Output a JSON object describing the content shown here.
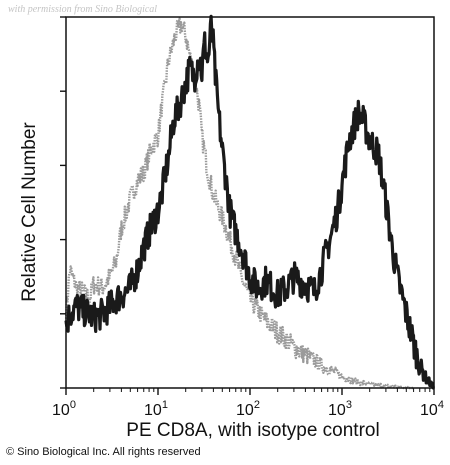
{
  "watermark": "with permission from Sino Biological",
  "copyright": "© Sino Biological Inc. All rights reserved",
  "chart_data": {
    "type": "area",
    "title": "",
    "xlabel": "PE CD8A, with isotype control",
    "ylabel": "Relative Cell Number",
    "x_scale": "log",
    "xlim": [
      1,
      10000
    ],
    "ylim": [
      0,
      100
    ],
    "grid": false,
    "legend": "none",
    "x_ticks": [
      {
        "value": 1,
        "base": "10",
        "exp": "0"
      },
      {
        "value": 10,
        "base": "10",
        "exp": "1"
      },
      {
        "value": 100,
        "base": "10",
        "exp": "2"
      },
      {
        "value": 1000,
        "base": "10",
        "exp": "3"
      },
      {
        "value": 10000,
        "base": "10",
        "exp": "4"
      }
    ],
    "series": [
      {
        "role": "isotype-control",
        "color": "#9a9a9a",
        "x": [
          1.0,
          1.1,
          1.3,
          1.5,
          1.8,
          2.0,
          2.5,
          3.0,
          3.5,
          4.0,
          5.0,
          6.0,
          7.0,
          8.0,
          9.0,
          10,
          11,
          12,
          13,
          14,
          15,
          16,
          18,
          20,
          22,
          25,
          28,
          30,
          35,
          40,
          50,
          60,
          70,
          80,
          100,
          120,
          150,
          200,
          250,
          300,
          400,
          500,
          600,
          800,
          1000,
          1200,
          1500,
          2000,
          3000,
          4000,
          5000,
          6000
        ],
        "y": [
          20,
          32,
          27,
          26,
          24,
          28,
          27,
          30,
          34,
          43,
          51,
          56,
          58,
          63,
          66,
          68,
          76,
          82,
          88,
          91,
          94,
          96,
          98,
          95,
          90,
          84,
          76,
          68,
          58,
          52,
          46,
          40,
          35,
          30,
          24,
          21,
          18,
          15,
          13,
          11,
          9,
          7.5,
          6,
          4.5,
          3.2,
          2.4,
          1.6,
          1.0,
          0.6,
          0.3,
          0.15,
          0
        ]
      },
      {
        "role": "PE CD8A",
        "color": "#1a1a1a",
        "x": [
          1.0,
          1.1,
          1.3,
          1.5,
          1.8,
          2.0,
          2.5,
          3.0,
          3.5,
          4.0,
          5.0,
          6.0,
          7.0,
          8.0,
          9.0,
          10,
          11,
          12,
          13,
          14,
          15,
          16,
          18,
          20,
          22,
          25,
          28,
          30,
          32,
          35,
          38,
          40,
          42,
          45,
          50,
          55,
          60,
          70,
          80,
          100,
          120,
          150,
          200,
          250,
          300,
          400,
          500,
          600,
          700,
          800,
          900,
          1000,
          1200,
          1500,
          1700,
          2000,
          2500,
          3000,
          3500,
          4000,
          5000,
          6000,
          7000,
          8000,
          10000
        ],
        "y": [
          17,
          20,
          22,
          21,
          20,
          19,
          20,
          22,
          24,
          25,
          27,
          32,
          38,
          42,
          45,
          48,
          52,
          58,
          62,
          68,
          73,
          74,
          78,
          82,
          86,
          84,
          90,
          85,
          93,
          88,
          98,
          92,
          84,
          75,
          64,
          56,
          48,
          42,
          38,
          30,
          27,
          29,
          25,
          27,
          30,
          28,
          26,
          32,
          38,
          43,
          48,
          55,
          67,
          74,
          72,
          67,
          63,
          50,
          38,
          30,
          20,
          12,
          6,
          3,
          0
        ]
      }
    ]
  }
}
